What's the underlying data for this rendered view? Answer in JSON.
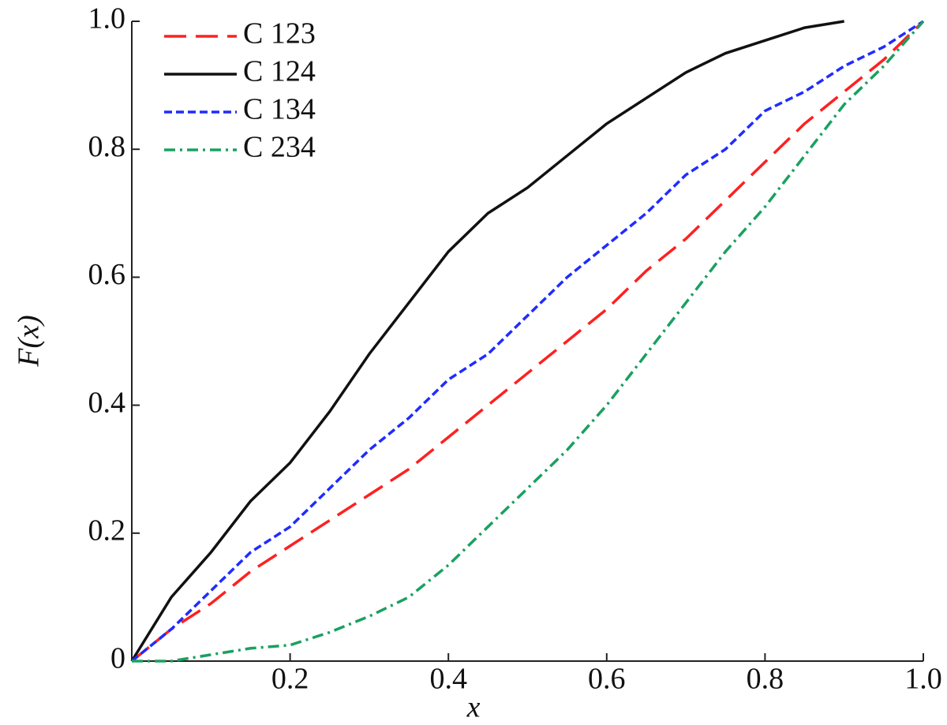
{
  "chart_data": {
    "type": "line",
    "x_label": "x",
    "y_label": "F(x)",
    "x": [
      0,
      0.05,
      0.1,
      0.15,
      0.2,
      0.25,
      0.3,
      0.35,
      0.4,
      0.45,
      0.5,
      0.55,
      0.6,
      0.65,
      0.7,
      0.75,
      0.8,
      0.85,
      0.9,
      0.95,
      1
    ],
    "series": [
      {
        "name": "C 123",
        "color": "#ff2020",
        "dash": "28 12",
        "values": [
          0,
          0.05,
          0.09,
          0.14,
          0.18,
          0.22,
          0.26,
          0.3,
          0.35,
          0.4,
          0.45,
          0.5,
          0.55,
          0.61,
          0.66,
          0.72,
          0.78,
          0.84,
          0.89,
          0.94,
          1
        ]
      },
      {
        "name": "C 124",
        "color": "#111111",
        "dash": "none",
        "values": [
          0,
          0.1,
          0.17,
          0.25,
          0.31,
          0.39,
          0.48,
          0.56,
          0.64,
          0.7,
          0.74,
          0.79,
          0.84,
          0.88,
          0.92,
          0.95,
          0.97,
          0.99,
          1,
          null,
          null
        ]
      },
      {
        "name": "C 134",
        "color": "#1f2cff",
        "dash": "10 5",
        "values": [
          0,
          0.05,
          0.11,
          0.17,
          0.21,
          0.27,
          0.33,
          0.38,
          0.44,
          0.48,
          0.54,
          0.6,
          0.65,
          0.7,
          0.76,
          0.8,
          0.86,
          0.89,
          0.93,
          0.96,
          1
        ]
      },
      {
        "name": "C 234",
        "color": "#1aa060",
        "dash": "14 6 3 6",
        "values": [
          0,
          0,
          0.01,
          0.02,
          0.025,
          0.045,
          0.07,
          0.1,
          0.15,
          0.21,
          0.27,
          0.33,
          0.4,
          0.48,
          0.56,
          0.64,
          0.71,
          0.79,
          0.87,
          0.93,
          1
        ]
      }
    ],
    "xlim": [
      0,
      1
    ],
    "ylim": [
      0,
      1
    ],
    "xticks": [
      0.2,
      0.4,
      0.6,
      0.8,
      {
        "value": 1,
        "label": "1.0"
      }
    ],
    "yticks": [
      0,
      0.2,
      0.4,
      0.6,
      0.8,
      {
        "value": 1,
        "label": "1.0"
      }
    ],
    "legend": "upper-left"
  }
}
